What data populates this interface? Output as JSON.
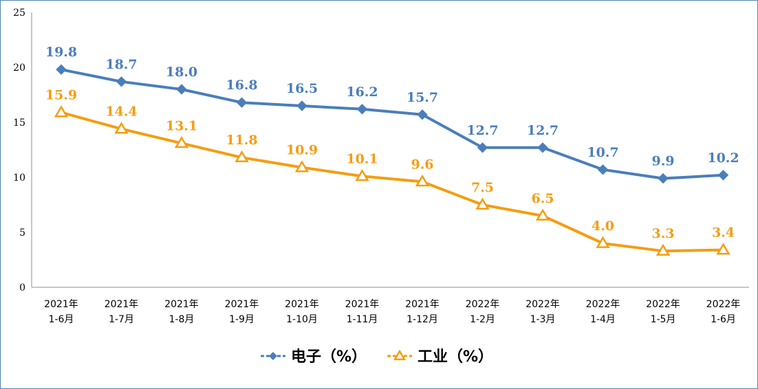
{
  "chart_data": {
    "type": "line",
    "title": "",
    "xlabel": "",
    "ylabel": "",
    "ylim": [
      0,
      25
    ],
    "yticks": [
      0,
      5,
      10,
      15,
      20,
      25
    ],
    "grid": false,
    "legend_position": "bottom-center",
    "categories": [
      [
        "2021年",
        "1-6月"
      ],
      [
        "2021年",
        "1-7月"
      ],
      [
        "2021年",
        "1-8月"
      ],
      [
        "2021年",
        "1-9月"
      ],
      [
        "2021年",
        "1-10月"
      ],
      [
        "2021年",
        "1-11月"
      ],
      [
        "2021年",
        "1-12月"
      ],
      [
        "2022年",
        "1-2月"
      ],
      [
        "2022年",
        "1-3月"
      ],
      [
        "2022年",
        "1-4月"
      ],
      [
        "2022年",
        "1-5月"
      ],
      [
        "2022年",
        "1-6月"
      ]
    ],
    "series": [
      {
        "name": "电子（%）",
        "color": "#4a7ebb",
        "marker": "diamond",
        "values": [
          19.8,
          18.7,
          18.0,
          16.8,
          16.5,
          16.2,
          15.7,
          12.7,
          12.7,
          10.7,
          9.9,
          10.2
        ],
        "labels": [
          "19.8",
          "18.7",
          "18.0",
          "16.8",
          "16.5",
          "16.2",
          "15.7",
          "12.7",
          "12.7",
          "10.7",
          "9.9",
          "10.2"
        ]
      },
      {
        "name": "工业（%）",
        "color": "#f59d0e",
        "marker": "triangle",
        "values": [
          15.9,
          14.4,
          13.1,
          11.8,
          10.9,
          10.1,
          9.6,
          7.5,
          6.5,
          4.0,
          3.3,
          3.4
        ],
        "labels": [
          "15.9",
          "14.4",
          "13.1",
          "11.8",
          "10.9",
          "10.1",
          "9.6",
          "7.5",
          "6.5",
          "4.0",
          "3.3",
          "3.4"
        ]
      }
    ]
  }
}
